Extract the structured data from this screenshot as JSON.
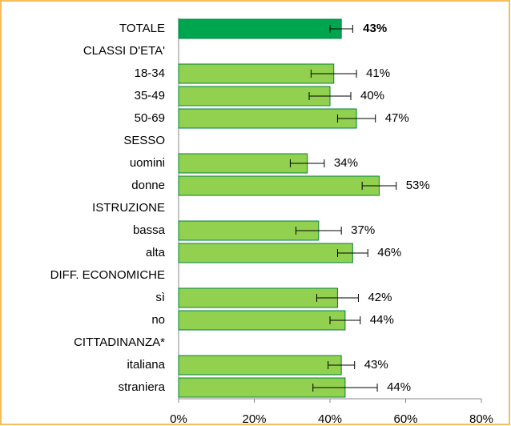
{
  "chart_data": {
    "type": "hbar",
    "categories": [
      "TOTALE",
      "CLASSI D'ETA'",
      "18-34",
      "35-49",
      "50-69",
      "SESSO",
      "uomini",
      "donne",
      "ISTRUZIONE",
      "bassa",
      "alta",
      "DIFF. ECONOMICHE",
      "sì",
      "no",
      "CITTADINANZA*",
      "italiana",
      "straniera"
    ],
    "values": [
      43,
      null,
      41,
      40,
      47,
      null,
      34,
      53,
      null,
      37,
      46,
      null,
      42,
      44,
      null,
      43,
      44
    ],
    "value_labels": [
      "43%",
      null,
      "41%",
      "40%",
      "47%",
      null,
      "34%",
      "53%",
      null,
      "37%",
      "46%",
      null,
      "42%",
      "44%",
      null,
      "43%",
      "44%"
    ],
    "errors": [
      3,
      null,
      6,
      5.5,
      5,
      null,
      4.5,
      4.5,
      null,
      6,
      4,
      null,
      5.5,
      4,
      null,
      3.5,
      8.5
    ],
    "colors": [
      "#00a550",
      null,
      "#92d050",
      "#92d050",
      "#92d050",
      null,
      "#92d050",
      "#92d050",
      null,
      "#92d050",
      "#92d050",
      null,
      "#92d050",
      "#92d050",
      null,
      "#92d050",
      "#92d050"
    ],
    "xlim": [
      0,
      80
    ],
    "xticks": [
      {
        "value": 0,
        "label": "0%"
      },
      {
        "value": 20,
        "label": "20%"
      },
      {
        "value": 40,
        "label": "40%"
      },
      {
        "value": 60,
        "label": "60%"
      },
      {
        "value": 80,
        "label": "80%"
      }
    ]
  }
}
